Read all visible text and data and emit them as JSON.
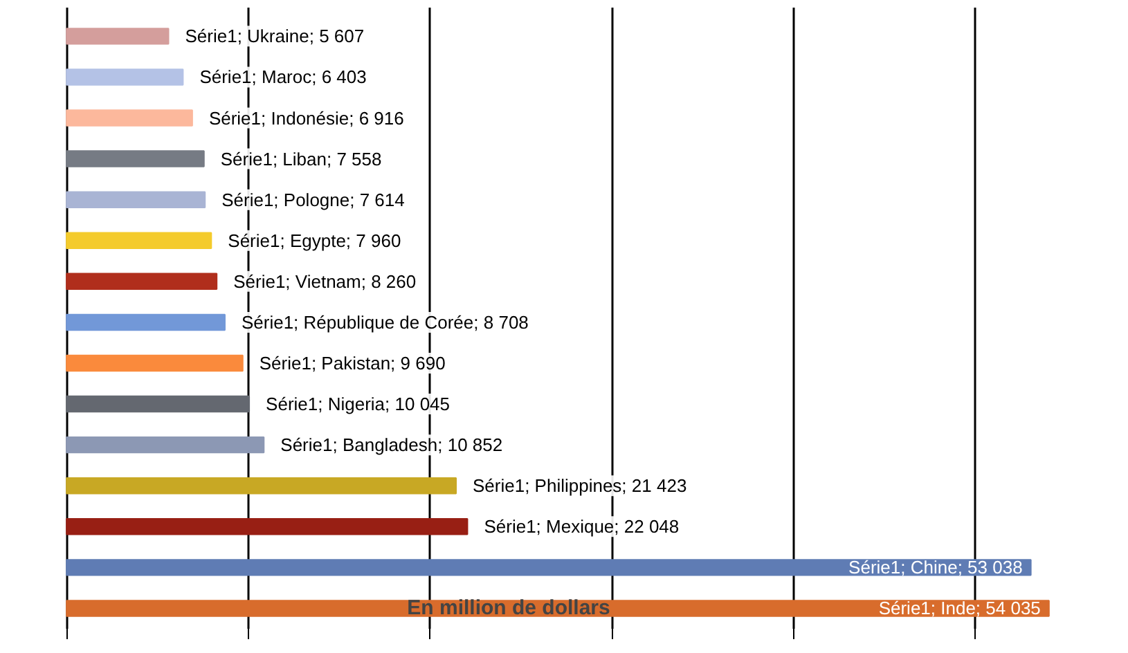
{
  "chart_data": {
    "type": "bar",
    "orientation": "horizontal",
    "xlabel": "En million de dollars",
    "categories": [
      null,
      null,
      null,
      null,
      null,
      null,
      null,
      null,
      null,
      null,
      null,
      null,
      null,
      null,
      null
    ],
    "series": [
      {
        "values": [
          5607,
          6403,
          6916,
          7558,
          7614,
          7960,
          8260,
          8708,
          9690,
          10045,
          10852,
          21423,
          22048,
          53038,
          54035
        ],
        "value_labels": [
          "Série1; Ukraine; 5 607",
          "Série1; Maroc; 6 403",
          "Série1; Indonésie; 6 916",
          "Série1; Liban; 7 558",
          "Série1; Pologne; 7 614",
          "Série1; Egypte; 7 960",
          "Série1; Vietnam; 8 260",
          "Série1; République de Corée; 8 708",
          "Série1; Pakistan; 9 690",
          "Série1; Nigeria; 10 045",
          "Série1; Bangladesh; 10 852",
          "Série1; Philippines; 21 423",
          "Série1; Mexique; 22 048",
          "Série1; Chine; 53 038",
          "Série1; Inde; 54 035"
        ],
        "colors": [
          "#d49e9c",
          "#b4c2e6",
          "#fcb89c",
          "#767b84",
          "#a9b4d4",
          "#f4cb2c",
          "#b02e1c",
          "#7298d8",
          "#fa8a3c",
          "#646870",
          "#8c98b4",
          "#c8a824",
          "#981f14",
          "#5f7cb4",
          "#d86c2c"
        ]
      }
    ],
    "grid": "x",
    "tick_labels": false
  }
}
